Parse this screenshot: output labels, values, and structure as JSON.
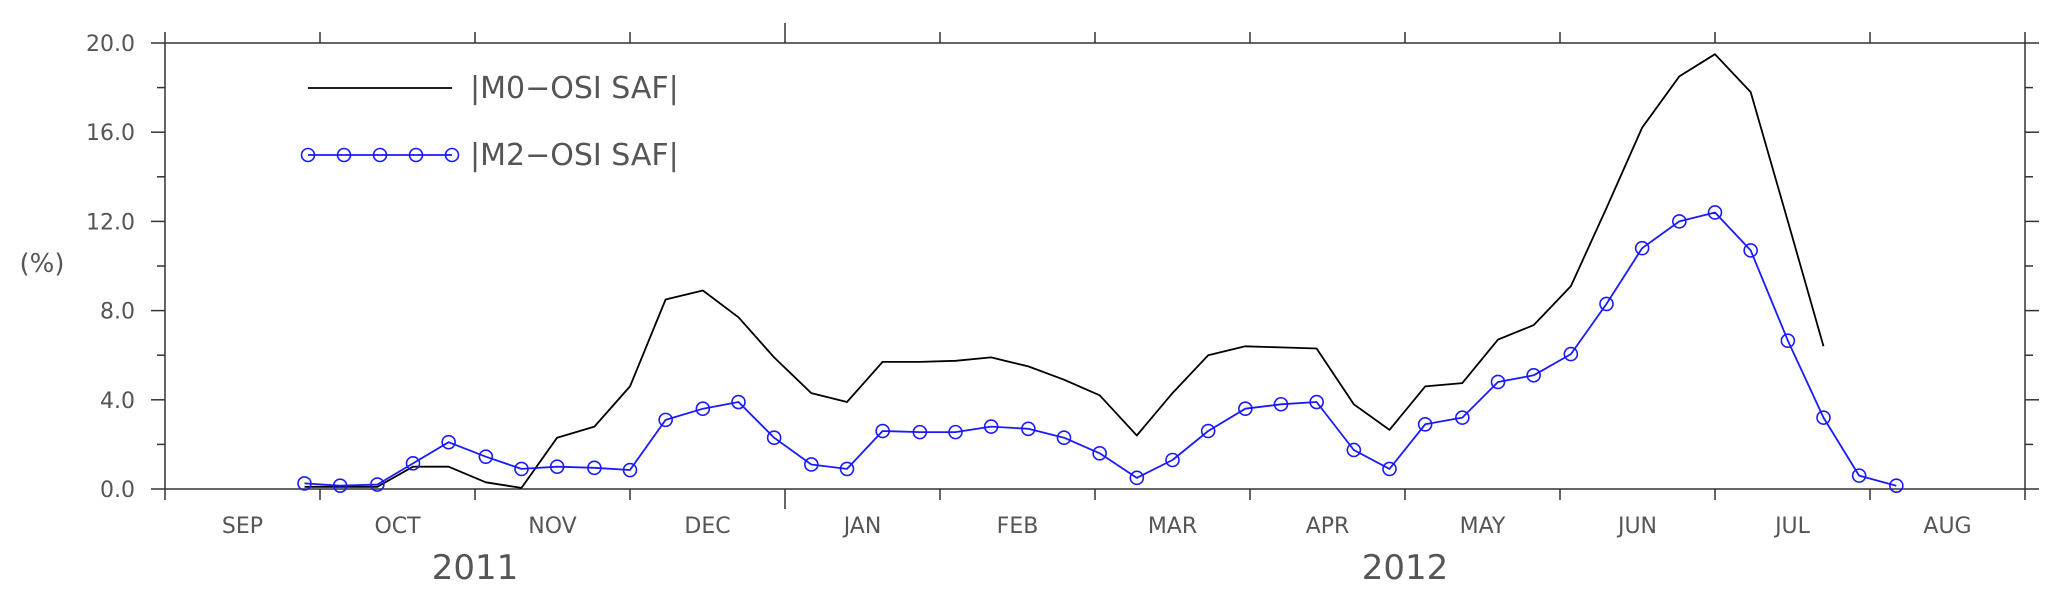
{
  "chart_data": {
    "type": "line",
    "ylabel": "(%)",
    "ylim": [
      0,
      20
    ],
    "yticks": [
      "0.0",
      "4.0",
      "8.0",
      "12.0",
      "16.0",
      "20.0"
    ],
    "xlim": [
      0,
      12
    ],
    "months": [
      "SEP",
      "OCT",
      "NOV",
      "DEC",
      "JAN",
      "FEB",
      "MAR",
      "APR",
      "MAY",
      "JUN",
      "JUL",
      "AUG"
    ],
    "years": [
      {
        "label": "2011",
        "x": 2
      },
      {
        "label": "2012",
        "x": 8
      }
    ],
    "legend_placement": "top-left",
    "grid": false,
    "series": [
      {
        "name": "|M0−OSI SAF|",
        "color": "#000000",
        "markers": false,
        "x": [
          0.9,
          1.13,
          1.37,
          1.6,
          1.83,
          2.07,
          2.3,
          2.53,
          2.77,
          3.0,
          3.23,
          3.47,
          3.7,
          3.93,
          4.17,
          4.4,
          4.63,
          4.87,
          5.1,
          5.33,
          5.57,
          5.8,
          6.03,
          6.27,
          6.5,
          6.73,
          6.97,
          7.2,
          7.43,
          7.67,
          7.9,
          8.13,
          8.37,
          8.6,
          8.83,
          9.07,
          9.3,
          9.53,
          9.77,
          10.0,
          10.23,
          10.47,
          10.7
        ],
        "values": [
          0.1,
          0.1,
          0.1,
          1.0,
          1.0,
          0.3,
          0.05,
          2.3,
          2.8,
          4.6,
          8.5,
          8.9,
          7.7,
          5.9,
          4.3,
          3.9,
          5.7,
          5.7,
          5.75,
          5.9,
          5.5,
          4.9,
          4.2,
          2.4,
          4.3,
          6.0,
          6.4,
          6.35,
          6.3,
          3.8,
          2.65,
          4.6,
          4.75,
          6.7,
          7.35,
          9.1,
          12.6,
          16.2,
          18.5,
          19.5,
          17.8,
          12.0,
          6.4
        ]
      },
      {
        "name": "|M2−OSI SAF|",
        "color": "#1a1aff",
        "markers": true,
        "x": [
          0.9,
          1.13,
          1.37,
          1.6,
          1.83,
          2.07,
          2.3,
          2.53,
          2.77,
          3.0,
          3.23,
          3.47,
          3.7,
          3.93,
          4.17,
          4.4,
          4.63,
          4.87,
          5.1,
          5.33,
          5.57,
          5.8,
          6.03,
          6.27,
          6.5,
          6.73,
          6.97,
          7.2,
          7.43,
          7.67,
          7.9,
          8.13,
          8.37,
          8.6,
          8.83,
          9.07,
          9.3,
          9.53,
          9.77,
          10.0,
          10.23,
          10.47,
          10.7,
          10.93,
          11.17
        ],
        "values": [
          0.25,
          0.15,
          0.2,
          1.15,
          2.1,
          1.45,
          0.9,
          1.0,
          0.95,
          0.85,
          3.1,
          3.6,
          3.9,
          2.3,
          1.1,
          0.9,
          2.6,
          2.55,
          2.55,
          2.8,
          2.7,
          2.3,
          1.6,
          0.5,
          1.3,
          2.6,
          3.6,
          3.8,
          3.9,
          1.75,
          0.9,
          2.9,
          3.2,
          4.8,
          5.1,
          6.05,
          8.3,
          10.8,
          12.0,
          12.4,
          10.7,
          6.65,
          3.2,
          0.6,
          0.15
        ]
      }
    ]
  }
}
